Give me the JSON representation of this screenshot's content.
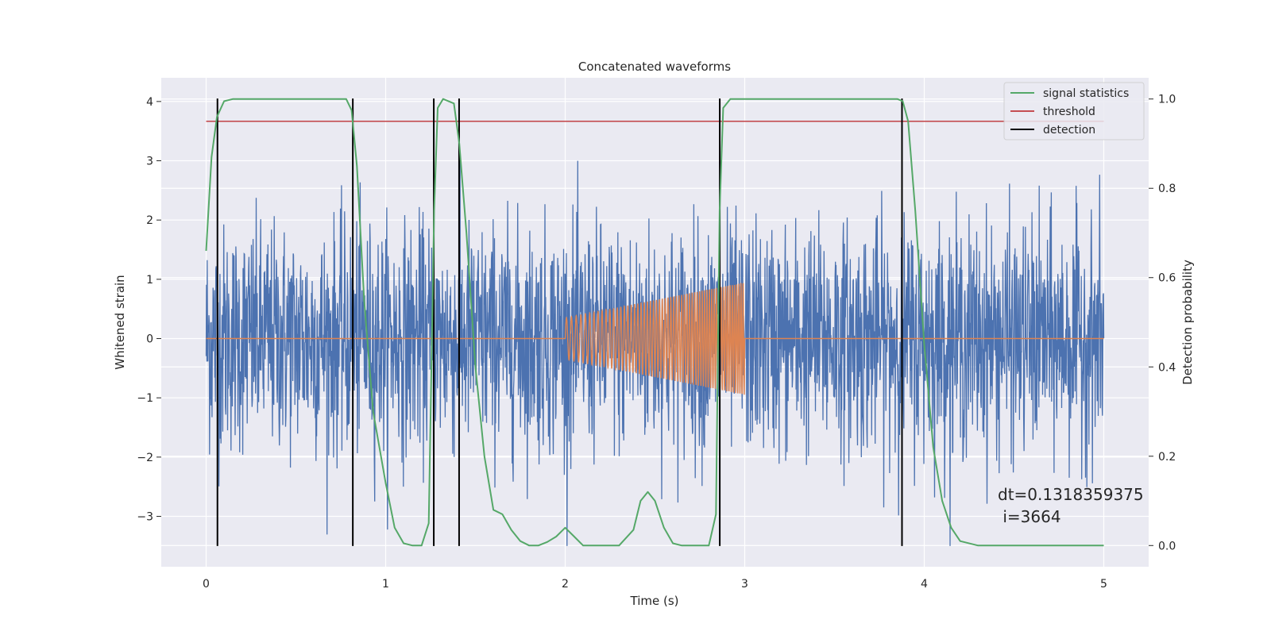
{
  "chart_data": {
    "type": "line",
    "title": "Concatenated waveforms",
    "xlabel": "Time (s)",
    "ylabel": "Whitened strain",
    "y2label": "Detection probability",
    "xlim": [
      -0.25,
      5.25
    ],
    "ylim": [
      -3.85,
      4.4
    ],
    "y2lim": [
      -0.0475,
      1.0475
    ],
    "xticks": [
      0,
      1,
      2,
      3,
      4,
      5
    ],
    "yticks": [
      -3,
      -2,
      -1,
      0,
      1,
      2,
      3,
      4
    ],
    "y2ticks": [
      0.0,
      0.2,
      0.4,
      0.6,
      0.8,
      1.0
    ],
    "grid": true,
    "legend_position": "top-right",
    "series": [
      {
        "kind": "strain_noise",
        "color": "#4c72b0",
        "x_range": [
          0,
          5
        ],
        "approx_range": [
          -3.5,
          4.05
        ]
      },
      {
        "kind": "injected_chirp",
        "color": "#dd8452",
        "x_range": [
          0,
          5
        ],
        "active_x_range": [
          2.0,
          3.0
        ],
        "amplitude_start": 0.35,
        "amplitude_end": 0.95,
        "center": 0
      },
      {
        "name": "signal statistics",
        "axis": "right",
        "color": "#55a868",
        "x": [
          0.0,
          0.03,
          0.06,
          0.1,
          0.15,
          0.2,
          0.5,
          0.78,
          0.81,
          0.84,
          0.88,
          0.93,
          1.0,
          1.05,
          1.1,
          1.15,
          1.2,
          1.24,
          1.27,
          1.29,
          1.32,
          1.38,
          1.41,
          1.45,
          1.5,
          1.55,
          1.6,
          1.65,
          1.7,
          1.75,
          1.8,
          1.85,
          1.9,
          1.95,
          2.0,
          2.05,
          2.1,
          2.3,
          2.38,
          2.42,
          2.46,
          2.5,
          2.55,
          2.6,
          2.65,
          2.7,
          2.8,
          2.84,
          2.86,
          2.88,
          2.92,
          3.0,
          3.85,
          3.88,
          3.91,
          3.95,
          4.0,
          4.05,
          4.1,
          4.15,
          4.2,
          4.3,
          5.0
        ],
        "y": [
          0.66,
          0.87,
          0.96,
          0.995,
          1.0,
          1.0,
          1.0,
          1.0,
          0.975,
          0.85,
          0.55,
          0.3,
          0.14,
          0.04,
          0.005,
          0.0,
          0.0,
          0.05,
          0.75,
          0.98,
          1.0,
          0.99,
          0.9,
          0.7,
          0.4,
          0.2,
          0.08,
          0.07,
          0.035,
          0.01,
          0.0,
          0.0,
          0.008,
          0.02,
          0.04,
          0.02,
          0.0,
          0.0,
          0.035,
          0.1,
          0.12,
          0.1,
          0.04,
          0.005,
          0.0,
          0.0,
          0.0,
          0.07,
          0.75,
          0.98,
          1.0,
          1.0,
          1.0,
          0.995,
          0.95,
          0.75,
          0.45,
          0.22,
          0.1,
          0.04,
          0.01,
          0.0,
          0.0
        ]
      },
      {
        "name": "threshold",
        "axis": "right",
        "color": "#c44e52",
        "x": [
          0,
          5
        ],
        "y": [
          0.95,
          0.95
        ]
      },
      {
        "name": "detection",
        "color": "#000000",
        "type": "vlines",
        "x": [
          0.063,
          0.817,
          1.268,
          1.409,
          2.861,
          3.876
        ]
      }
    ],
    "annotations": {
      "dt": "dt=0.1318359375",
      "i": " i=3664"
    }
  }
}
